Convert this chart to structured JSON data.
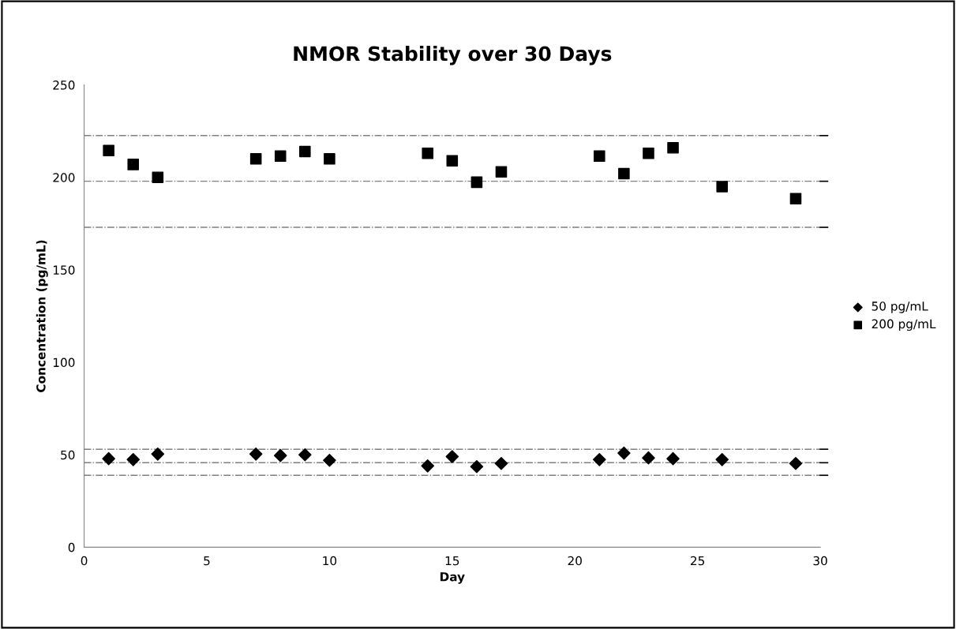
{
  "chart_data": {
    "type": "scatter",
    "title": "NMOR Stability over 30 Days",
    "xlabel": "Day",
    "ylabel": "Concentration (pg/mL)",
    "x": [
      1,
      2,
      3,
      7,
      8,
      9,
      10,
      14,
      15,
      16,
      17,
      21,
      22,
      23,
      24,
      26,
      29
    ],
    "series": [
      {
        "name": "50 pg/mL",
        "color": "#000000",
        "marker": "diamond",
        "values": [
          47.9,
          47.4,
          50.4,
          50.4,
          49.6,
          50,
          47,
          44,
          49,
          43.6,
          45.3,
          47.4,
          50.9,
          48.3,
          47.9,
          47.4,
          45.3
        ]
      },
      {
        "name": "200 pg/mL",
        "color": "#000000",
        "marker": "square",
        "values": [
          214.5,
          207,
          200,
          210,
          211.5,
          214,
          210,
          213,
          209,
          197.4,
          203,
          211.5,
          202,
          213,
          216,
          195,
          188.5
        ]
      }
    ],
    "xlim": [
      0,
      30
    ],
    "xticks": [
      0,
      5,
      10,
      15,
      20,
      25,
      30
    ],
    "ylim": [
      0,
      250
    ],
    "yticks": [
      0,
      50,
      100,
      150,
      200,
      250
    ],
    "ref_lines": [
      {
        "axis": "y",
        "value": 222.6,
        "color": "#808080",
        "line_style": "dashed"
      },
      {
        "axis": "y",
        "value": 197.9,
        "color": "#808080",
        "line_style": "dashed"
      },
      {
        "axis": "y",
        "value": 173,
        "color": "#808080",
        "line_style": "dashed"
      },
      {
        "axis": "y",
        "value": 53,
        "color": "#808080",
        "line_style": "dashed"
      },
      {
        "axis": "y",
        "value": 45.7,
        "color": "#808080",
        "line_style": "dashed"
      },
      {
        "axis": "y",
        "value": 38.9,
        "color": "#808080",
        "line_style": "dashed"
      }
    ],
    "grid": false,
    "legend": "right"
  }
}
